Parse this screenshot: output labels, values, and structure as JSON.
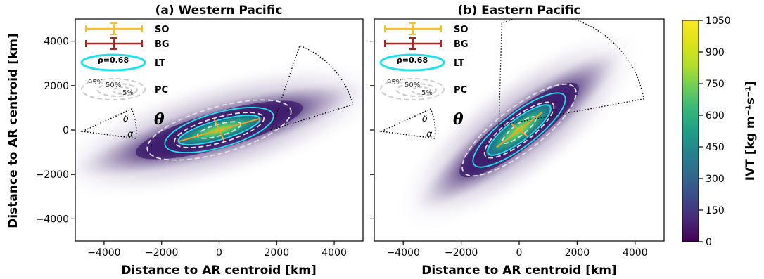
{
  "chart_data": [
    {
      "type": "heatmap",
      "title": "(a) Western Pacific",
      "xlabel": "Distance to AR centroid [km]",
      "ylabel": "Distance to AR centroid [km]",
      "xlim": [
        -5000,
        5000
      ],
      "ylim": [
        -5000,
        5000
      ],
      "xticks": [
        -4000,
        -2000,
        0,
        2000,
        4000
      ],
      "xtick_labels": [
        "−4000",
        "−2000",
        "0",
        "2000",
        "4000"
      ],
      "yticks": [
        -4000,
        -2000,
        0,
        2000,
        4000
      ],
      "ytick_labels": [
        "−4000",
        "−2000",
        "0",
        "2000",
        "4000"
      ],
      "cloud": {
        "center": [
          0,
          0
        ],
        "orientation_deg": 20,
        "semi_major_km": 5600,
        "semi_minor_km": 1050
      },
      "pc_contours": [
        {
          "label": "95%",
          "semi_major_km": 2650,
          "semi_minor_km": 1000,
          "orientation_deg": 20
        },
        {
          "label": "50%",
          "semi_major_km": 1650,
          "semi_minor_km": 550,
          "orientation_deg": 20
        },
        {
          "label": "5%",
          "semi_major_km": 800,
          "semi_minor_km": 250,
          "orientation_deg": 20
        }
      ],
      "lt_contours": [
        {
          "semi_major_km": 2000,
          "semi_minor_km": 750,
          "orientation_deg": 20
        },
        {
          "semi_major_km": 1500,
          "semi_minor_km": 420,
          "orientation_deg": 20
        }
      ],
      "so_axes": {
        "major_half_km": 1500,
        "minor_half_km": 500,
        "orientation_deg": 20
      },
      "wedge": {
        "tip": [
          1800,
          0
        ],
        "pt1": [
          2800,
          3800
        ],
        "pt2": [
          4650,
          1150
        ]
      }
    },
    {
      "type": "heatmap",
      "title": "(b) Eastern Pacific",
      "xlabel": "Distance to AR centroid [km]",
      "ylabel": "",
      "xlim": [
        -5000,
        5000
      ],
      "ylim": [
        -5000,
        5000
      ],
      "xticks": [
        -4000,
        -2000,
        0,
        2000,
        4000
      ],
      "xtick_labels": [
        "−4000",
        "−2000",
        "0",
        "2000",
        "4000"
      ],
      "yticks": [
        -4000,
        -2000,
        0,
        2000,
        4000
      ],
      "cloud": {
        "center": [
          0,
          0
        ],
        "orientation_deg": 45,
        "semi_major_km": 5200,
        "semi_minor_km": 950
      },
      "pc_contours": [
        {
          "label": "95%",
          "semi_major_km": 2700,
          "semi_minor_km": 850,
          "orientation_deg": 45
        },
        {
          "label": "50%",
          "semi_major_km": 1650,
          "semi_minor_km": 500,
          "orientation_deg": 45
        },
        {
          "label": "5%",
          "semi_major_km": 800,
          "semi_minor_km": 220,
          "orientation_deg": 45
        }
      ],
      "lt_contours": [
        {
          "semi_major_km": 2200,
          "semi_minor_km": 650,
          "orientation_deg": 45
        },
        {
          "semi_major_km": 1500,
          "semi_minor_km": 420,
          "orientation_deg": 45
        }
      ],
      "so_axes": {
        "major_half_km": 1100,
        "minor_half_km": 400,
        "orientation_deg": 45
      },
      "wedge": {
        "tip": [
          -700,
          200
        ],
        "pt1": [
          -600,
          4800
        ],
        "pt2": [
          4300,
          1400
        ]
      }
    }
  ],
  "legend": {
    "so": "SO",
    "bg": "BG",
    "lt": "LT",
    "rho": "ρ=0.68",
    "pc": "PC",
    "pc_95": "95%",
    "pc_50": "50%",
    "pc_5": "5%",
    "theta": "θ",
    "delta": "δ",
    "alpha": "α"
  },
  "colorbar": {
    "label": "IVT [kg m⁻¹s⁻¹]",
    "min": 0,
    "max": 1050,
    "ticks": [
      "0",
      "150",
      "300",
      "450",
      "600",
      "750",
      "900",
      "1050"
    ],
    "colormap": "viridis"
  },
  "colors": {
    "so": "#f2c12e",
    "bg": "#b22222",
    "lt": "#22e0ea",
    "pc": "#cccccc",
    "cloud": "#3b1a6b"
  }
}
